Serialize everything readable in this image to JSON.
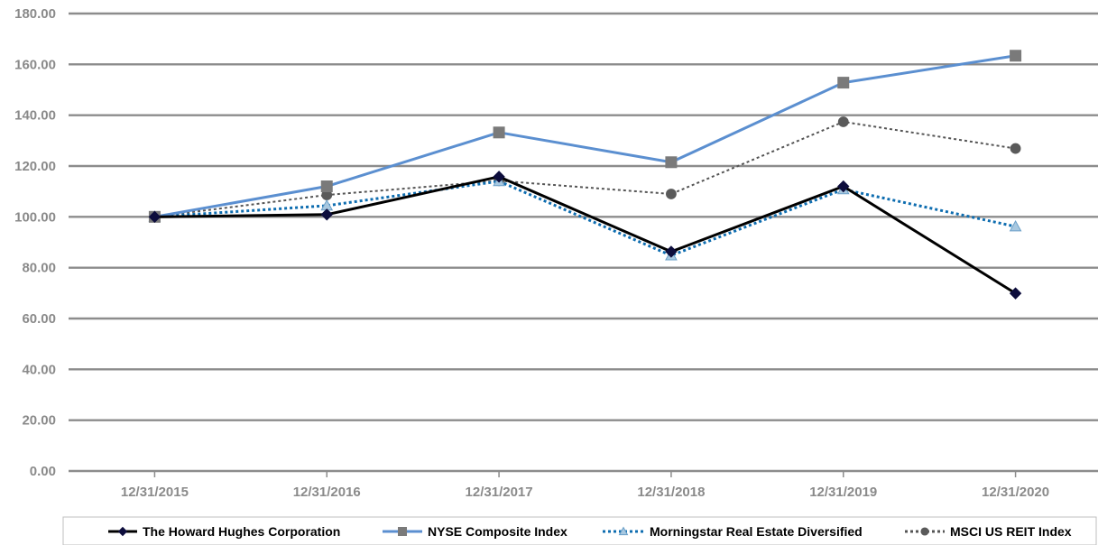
{
  "chart_data": {
    "type": "line",
    "title": "",
    "xlabel": "",
    "ylabel": "",
    "categories": [
      "12/31/2015",
      "12/31/2016",
      "12/31/2017",
      "12/31/2018",
      "12/31/2019",
      "12/31/2020"
    ],
    "ylim": [
      0,
      180
    ],
    "yticks": [
      "0.00",
      "20.00",
      "40.00",
      "60.00",
      "80.00",
      "100.00",
      "120.00",
      "140.00",
      "160.00",
      "180.00"
    ],
    "grid": true,
    "legend_position": "bottom",
    "series": [
      {
        "name": "The Howard Hughes Corporation",
        "values": [
          100.0,
          100.9,
          115.8,
          86.3,
          112.0,
          69.9
        ],
        "color": "#000000",
        "line_style": "solid",
        "marker": "diamond",
        "marker_color": "#0d0d3c"
      },
      {
        "name": "NYSE Composite Index",
        "values": [
          100.0,
          112.0,
          133.2,
          121.5,
          152.8,
          163.4
        ],
        "color": "#5b8fd0",
        "line_style": "solid",
        "marker": "square",
        "marker_color": "#7a7a7a"
      },
      {
        "name": "Morningstar Real Estate Diversified",
        "values": [
          100.0,
          104.4,
          114.0,
          84.8,
          110.8,
          96.2
        ],
        "color": "#0e6db0",
        "line_style": "dotted",
        "marker": "triangle",
        "marker_color": "#a8c8e0"
      },
      {
        "name": "MSCI US REIT Index",
        "values": [
          100.0,
          108.6,
          114.2,
          109.0,
          137.4,
          126.9
        ],
        "color": "#555555",
        "line_style": "dotted",
        "marker": "circle",
        "marker_color": "#5a5a5a"
      }
    ]
  }
}
